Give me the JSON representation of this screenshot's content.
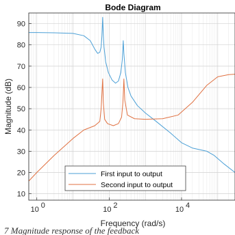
{
  "chart_data": {
    "type": "line",
    "title": "Bode Diagram",
    "xlabel": "Frequency  (rad/s)",
    "ylabel": "Magnitude (dB)",
    "xscale": "log",
    "xlim": [
      0.6,
      300000
    ],
    "ylim": [
      7,
      95
    ],
    "xticks": [
      1,
      100,
      10000
    ],
    "xtick_labels": [
      "10",
      "10",
      "10"
    ],
    "xtick_exponents": [
      "0",
      "2",
      "4"
    ],
    "yticks": [
      10,
      20,
      30,
      40,
      50,
      60,
      70,
      80,
      90
    ],
    "yticks_labels": [
      "10",
      "20",
      "30",
      "40",
      "50",
      "60",
      "70",
      "80",
      "90"
    ],
    "grid": true,
    "minor_grid": true,
    "legend_position": "bottom-center",
    "series": [
      {
        "name": "First input to output",
        "color": "#4a9fd6",
        "points": [
          [
            0.6,
            85.8
          ],
          [
            1,
            85.8
          ],
          [
            3,
            85.7
          ],
          [
            10,
            85.4
          ],
          [
            20,
            84.3
          ],
          [
            30,
            82
          ],
          [
            40,
            78
          ],
          [
            48,
            76
          ],
          [
            55,
            76.5
          ],
          [
            60,
            79
          ],
          [
            63,
            84
          ],
          [
            66,
            93
          ],
          [
            68,
            87
          ],
          [
            72,
            79
          ],
          [
            80,
            72
          ],
          [
            95,
            67
          ],
          [
            120,
            63.5
          ],
          [
            150,
            62
          ],
          [
            180,
            63
          ],
          [
            210,
            67
          ],
          [
            230,
            73
          ],
          [
            245,
            82
          ],
          [
            255,
            76
          ],
          [
            280,
            67
          ],
          [
            330,
            60
          ],
          [
            400,
            56
          ],
          [
            600,
            51.5
          ],
          [
            1000,
            48
          ],
          [
            2000,
            44
          ],
          [
            5000,
            38.5
          ],
          [
            10000,
            34
          ],
          [
            20000,
            31.5
          ],
          [
            50000,
            30
          ],
          [
            80000,
            28
          ],
          [
            150000,
            24
          ],
          [
            300000,
            20
          ]
        ]
      },
      {
        "name": "Second input to output",
        "color": "#e07040",
        "points": [
          [
            0.6,
            16
          ],
          [
            1,
            20
          ],
          [
            3,
            28
          ],
          [
            10,
            36
          ],
          [
            20,
            40
          ],
          [
            40,
            42
          ],
          [
            55,
            44
          ],
          [
            60,
            50
          ],
          [
            63,
            57
          ],
          [
            66,
            64
          ],
          [
            69,
            53
          ],
          [
            75,
            45
          ],
          [
            90,
            43
          ],
          [
            130,
            42
          ],
          [
            180,
            43
          ],
          [
            220,
            46
          ],
          [
            240,
            53
          ],
          [
            255,
            64
          ],
          [
            270,
            54
          ],
          [
            320,
            47
          ],
          [
            500,
            45.3
          ],
          [
            1000,
            45
          ],
          [
            3000,
            45.3
          ],
          [
            8000,
            47
          ],
          [
            20000,
            53
          ],
          [
            50000,
            61
          ],
          [
            100000,
            65
          ],
          [
            200000,
            66
          ],
          [
            300000,
            66.2
          ]
        ]
      }
    ],
    "caption": "7 Magnitude response of the feedback"
  }
}
